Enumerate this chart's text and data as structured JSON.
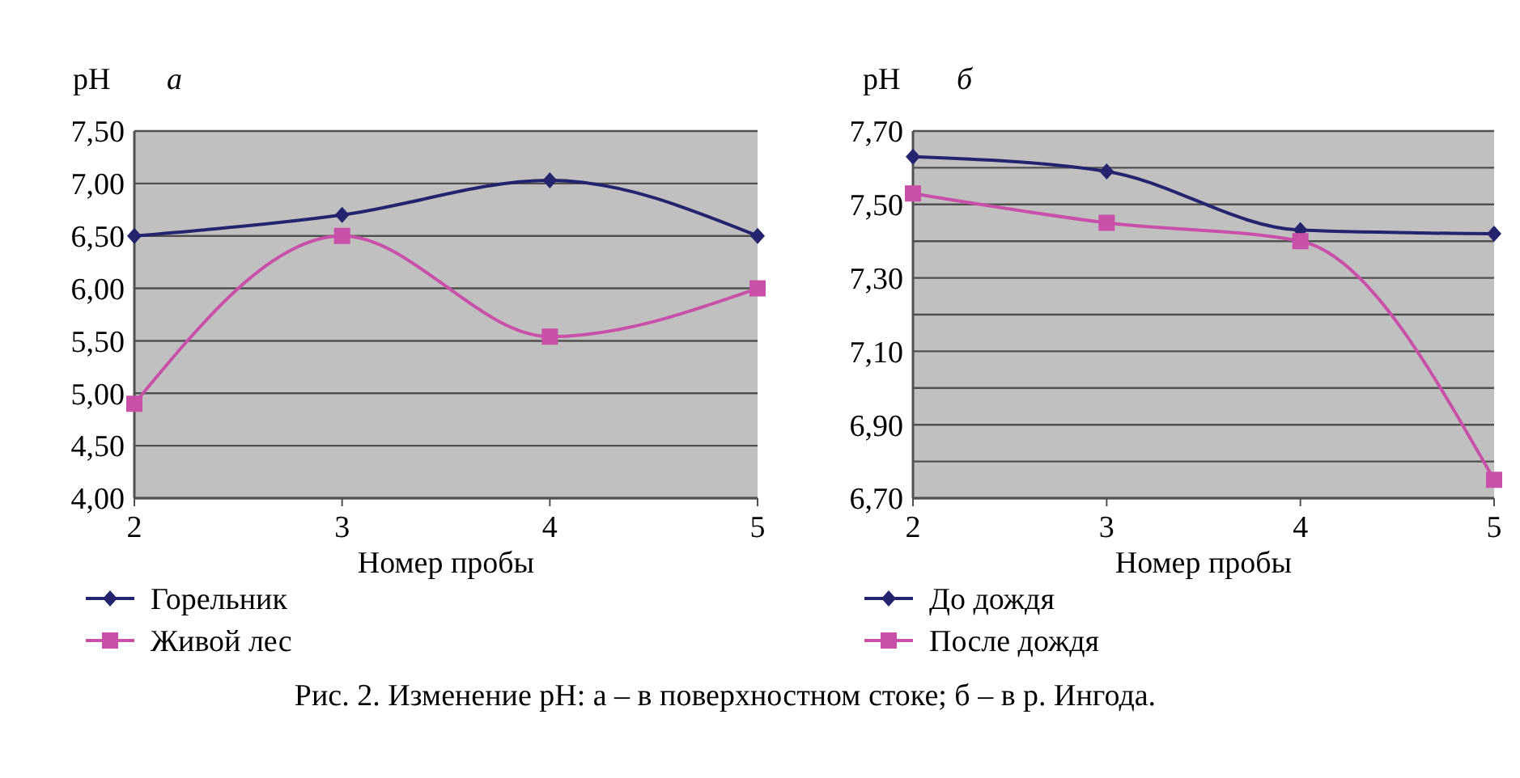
{
  "chart_data": [
    {
      "type": "line",
      "title": "а",
      "ylabel": "pH",
      "xlabel": "Номер пробы",
      "categories": [
        "2",
        "3",
        "4",
        "5"
      ],
      "series": [
        {
          "name": "Горельник",
          "color": "#23236e",
          "marker": "diamond",
          "values": [
            6.5,
            6.7,
            7.03,
            6.5
          ]
        },
        {
          "name": "Живой лес",
          "color": "#c850a8",
          "marker": "square",
          "values": [
            4.9,
            6.5,
            5.54,
            6.0
          ]
        }
      ],
      "ylim": [
        4,
        7.5
      ],
      "yticks": [
        {
          "value": 4,
          "label": "4,00"
        },
        {
          "value": 4.5,
          "label": "4,50"
        },
        {
          "value": 5,
          "label": "5,00"
        },
        {
          "value": 5.5,
          "label": "5,50"
        },
        {
          "value": 6,
          "label": "6,00"
        },
        {
          "value": 6.5,
          "label": "6,50"
        },
        {
          "value": 7,
          "label": "7,00"
        },
        {
          "value": 7.5,
          "label": "7,50"
        }
      ],
      "grid": "y",
      "legend": "bottom",
      "annotations": [
        "Рис. 2. Изменение pH: а – в поверхностном стоке; б – в р. Ингода."
      ]
    },
    {
      "type": "line",
      "title": "б",
      "ylabel": "pH",
      "xlabel": "Номер пробы",
      "categories": [
        "2",
        "3",
        "4",
        "5"
      ],
      "series": [
        {
          "name": "До дождя",
          "color": "#23236e",
          "marker": "diamond",
          "values": [
            7.63,
            7.59,
            7.43,
            7.42
          ]
        },
        {
          "name": "После дождя",
          "color": "#c850a8",
          "marker": "square",
          "values": [
            7.53,
            7.45,
            7.4,
            6.75
          ]
        }
      ],
      "ylim": [
        6.7,
        7.7
      ],
      "yticks": [
        {
          "value": 6.7,
          "label": "6,70"
        },
        {
          "value": 6.8,
          "label": null
        },
        {
          "value": 6.9,
          "label": "6,90"
        },
        {
          "value": 7.0,
          "label": null
        },
        {
          "value": 7.1,
          "label": "7,10"
        },
        {
          "value": 7.2,
          "label": null
        },
        {
          "value": 7.3,
          "label": "7,30"
        },
        {
          "value": 7.4,
          "label": null
        },
        {
          "value": 7.5,
          "label": "7,50"
        },
        {
          "value": 7.6,
          "label": null
        },
        {
          "value": 7.7,
          "label": "7,70"
        }
      ],
      "grid": "y",
      "legend": "bottom"
    }
  ]
}
